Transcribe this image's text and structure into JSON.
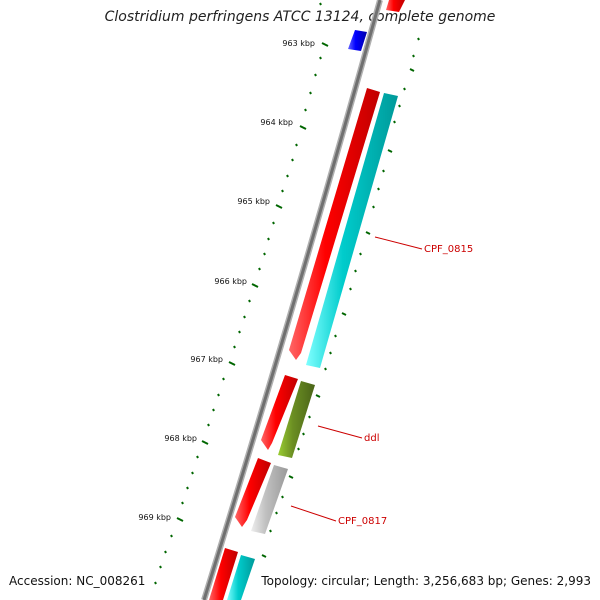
{
  "title": "Clostridium perfringens ATCC 13124, complete genome",
  "footer": {
    "accession": "Accession: NC_008261",
    "summary": "Topology: circular; Length: 3,256,683 bp; Genes: 2,993"
  },
  "ticks": [
    {
      "label": "963 kbp",
      "kbp": 963
    },
    {
      "label": "964 kbp",
      "kbp": 964
    },
    {
      "label": "965 kbp",
      "kbp": 965
    },
    {
      "label": "966 kbp",
      "kbp": 966
    },
    {
      "label": "967 kbp",
      "kbp": 967
    },
    {
      "label": "968 kbp",
      "kbp": 968
    },
    {
      "label": "969 kbp",
      "kbp": 969
    }
  ],
  "gene_labels": [
    {
      "text": "CPF_0815",
      "color": "#cc0000"
    },
    {
      "text": "ddl",
      "color": "#cc0000"
    },
    {
      "text": "CPF_0817",
      "color": "#cc0000"
    }
  ],
  "colors": {
    "backbone": "#808080",
    "cds": "#ff0000",
    "gene_cyan": "#00cccc",
    "gene_olive": "#6b8e23",
    "gene_gray": "#c0c0c0",
    "gene_blue": "#0000ff",
    "tick": "#006600",
    "label_line": "#cc0000"
  }
}
